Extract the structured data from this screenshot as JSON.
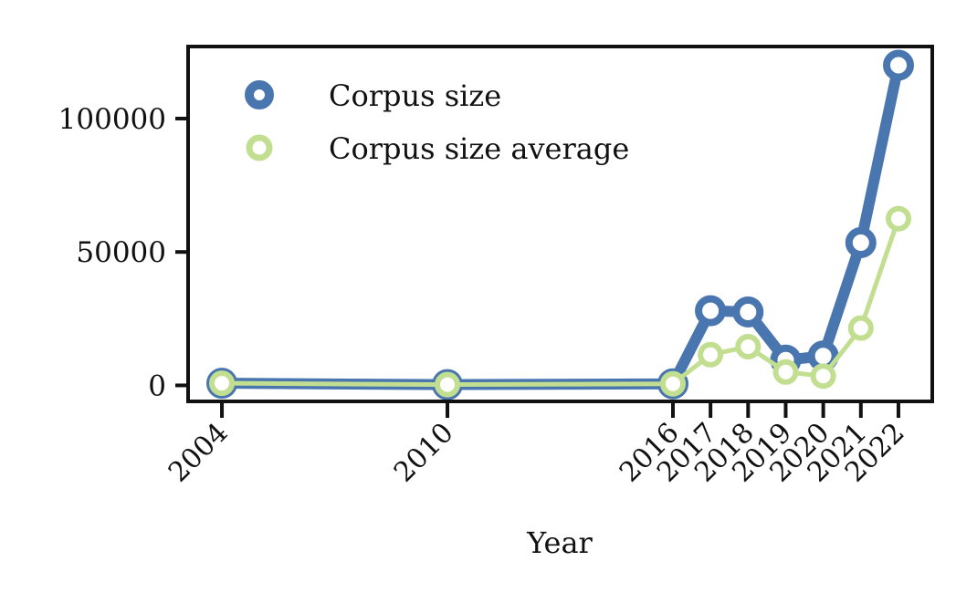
{
  "chart_data": {
    "type": "line",
    "title": "",
    "xlabel": "Year",
    "ylabel": "",
    "x": [
      2004,
      2010,
      2016,
      2017,
      2018,
      2019,
      2020,
      2021,
      2022
    ],
    "x_tick_labels": [
      "2004",
      "2010",
      "2016",
      "2017",
      "2018",
      "2019",
      "2020",
      "2021",
      "2022"
    ],
    "y_ticks": [
      0,
      50000,
      100000
    ],
    "y_tick_labels": [
      "0",
      "50000",
      "100000"
    ],
    "xlim": [
      2003.1,
      2022.9
    ],
    "ylim": [
      -6000,
      127000
    ],
    "grid": false,
    "legend_position": "top-left",
    "series": [
      {
        "name": "Corpus size",
        "color": "#4a76b0",
        "values": [
          800,
          300,
          600,
          28000,
          27500,
          9500,
          11000,
          53500,
          120000
        ]
      },
      {
        "name": "Corpus size average",
        "color": "#c2df91",
        "values": [
          800,
          300,
          600,
          11500,
          14500,
          5000,
          3500,
          21500,
          62500
        ]
      }
    ]
  }
}
